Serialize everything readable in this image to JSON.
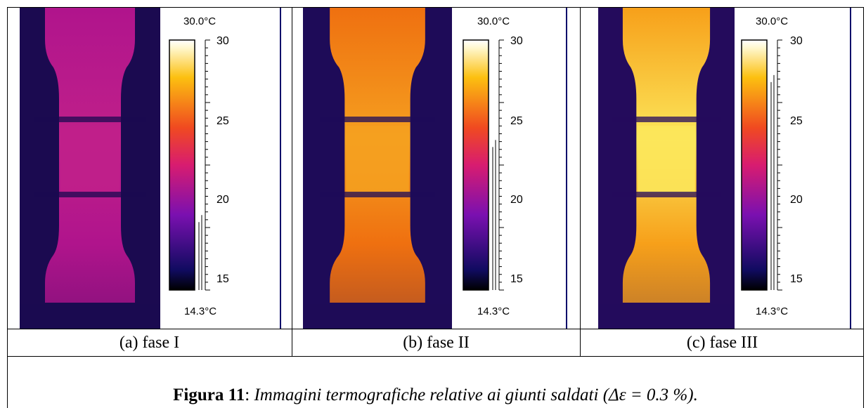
{
  "panels": [
    {
      "caption": "(a) fase I",
      "scale_max_label": "30.0°C",
      "scale_min_label": "14.3°C",
      "ticks": [
        "30",
        "25",
        "20",
        "15"
      ],
      "level": 0.3,
      "body_color": "#b0148c",
      "mid_color": "#c0208a",
      "bg_color": "#1b0a50"
    },
    {
      "caption": "(b) fase II",
      "scale_max_label": "30.0°C",
      "scale_min_label": "14.3°C",
      "ticks": [
        "30",
        "25",
        "20",
        "15"
      ],
      "level": 0.6,
      "body_color": "#ef7010",
      "mid_color": "#f5a020",
      "bg_color": "#1e0b58"
    },
    {
      "caption": "(c) fase III",
      "scale_max_label": "30.0°C",
      "scale_min_label": "14.3°C",
      "ticks": [
        "30",
        "25",
        "20",
        "15"
      ],
      "level": 0.86,
      "body_color": "#f7a01a",
      "mid_color": "#fbe65a",
      "bg_color": "#240b5c"
    }
  ],
  "figure_caption": {
    "label": "Figura 11",
    "separator": ": ",
    "text": "Immagini termografiche relative ai giunti saldati (Δε = 0.3 %)."
  }
}
